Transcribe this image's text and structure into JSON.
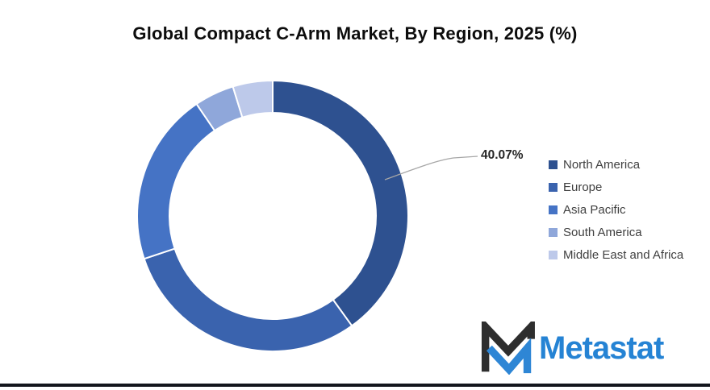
{
  "title": "Global Compact C-Arm Market, By Region, 2025 (%)",
  "chart_data": {
    "type": "pie",
    "subtype": "donut",
    "title": "Global Compact C-Arm Market, By Region, 2025 (%)",
    "categories": [
      "North America",
      "Europe",
      "Asia Pacific",
      "South America",
      "Middle East and Africa"
    ],
    "values": [
      40.07,
      29.8,
      20.63,
      4.75,
      4.75
    ],
    "colors": [
      "#2e5190",
      "#3a63ae",
      "#4573c5",
      "#8fa7da",
      "#bdc9ea"
    ],
    "hole_ratio": 0.76,
    "start_angle_deg": 0,
    "slice_gap_color": "#ffffff",
    "legend_position": "right",
    "data_labels": [
      {
        "category": "North America",
        "label": "40.07%"
      }
    ]
  },
  "callout": {
    "label": "40.07%",
    "line_color": "#a6a6a6",
    "text_color": "#262626"
  },
  "legend": {
    "text_color": "#404040"
  },
  "branding": {
    "logo_text": "Metastat",
    "logo_text_color": "#2583d4",
    "mark_dark_color": "#2e2e2e",
    "mark_blue_color": "#2e86d5"
  },
  "footer": {
    "line_color": "#13161c"
  }
}
